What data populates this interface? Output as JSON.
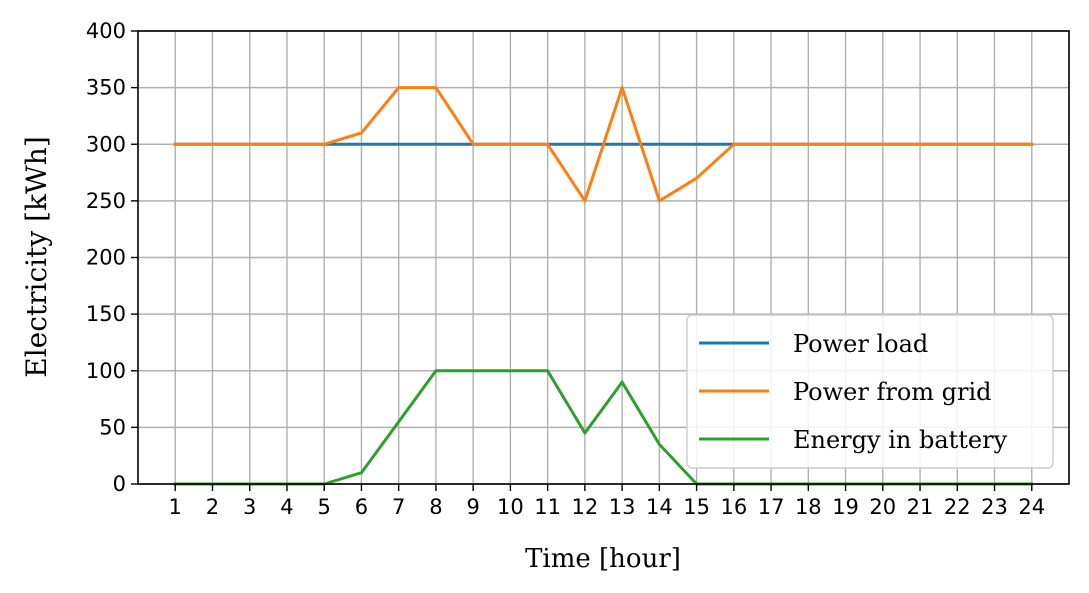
{
  "chart_data": {
    "type": "line",
    "xlabel": "Time [hour]",
    "ylabel": "Electricity [kWh]",
    "x": [
      1,
      2,
      3,
      4,
      5,
      6,
      7,
      8,
      9,
      10,
      11,
      12,
      13,
      14,
      15,
      16,
      17,
      18,
      19,
      20,
      21,
      22,
      23,
      24
    ],
    "xlim": [
      0,
      25
    ],
    "ylim": [
      0,
      400
    ],
    "yticks": [
      0,
      50,
      100,
      150,
      200,
      250,
      300,
      350,
      400
    ],
    "grid": true,
    "legend_position": "bottom-right",
    "series": [
      {
        "name": "Power load",
        "color": "#1f77b4",
        "values": [
          300,
          300,
          300,
          300,
          300,
          300,
          300,
          300,
          300,
          300,
          300,
          300,
          300,
          300,
          300,
          300,
          300,
          300,
          300,
          300,
          300,
          300,
          300,
          300
        ]
      },
      {
        "name": "Power from grid",
        "color": "#ff7f0e",
        "values": [
          300,
          300,
          300,
          300,
          300,
          310,
          350,
          350,
          300,
          300,
          300,
          250,
          350,
          250,
          270,
          300,
          300,
          300,
          300,
          300,
          300,
          300,
          300,
          300
        ]
      },
      {
        "name": "Energy in battery",
        "color": "#2ca02c",
        "values": [
          0,
          0,
          0,
          0,
          0,
          10,
          55,
          100,
          100,
          100,
          100,
          45,
          90,
          35,
          0,
          0,
          0,
          0,
          0,
          0,
          0,
          0,
          0,
          0
        ]
      }
    ]
  }
}
